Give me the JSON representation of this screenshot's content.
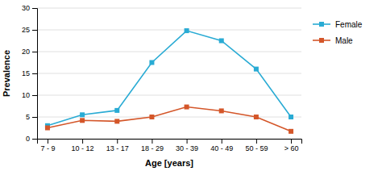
{
  "chart_data": {
    "type": "line",
    "xlabel": "Age [years]",
    "ylabel": "Prevalence",
    "categories": [
      "7 - 9",
      "10 - 12",
      "13 - 17",
      "18 - 29",
      "30 - 39",
      "40 - 49",
      "50 - 59",
      "> 60"
    ],
    "series": [
      {
        "name": "Female",
        "color": "#29ABD4",
        "values": [
          3.0,
          5.5,
          6.5,
          17.5,
          24.8,
          22.5,
          16.0,
          5.0
        ]
      },
      {
        "name": "Male",
        "color": "#D45629",
        "values": [
          2.5,
          4.2,
          4.0,
          5.0,
          7.3,
          6.4,
          5.0,
          1.7
        ]
      }
    ],
    "ylim": [
      0,
      30
    ],
    "yticks": [
      0,
      5,
      10,
      15,
      20,
      25,
      30
    ],
    "grid": true,
    "legend": "right",
    "marker": "square"
  }
}
